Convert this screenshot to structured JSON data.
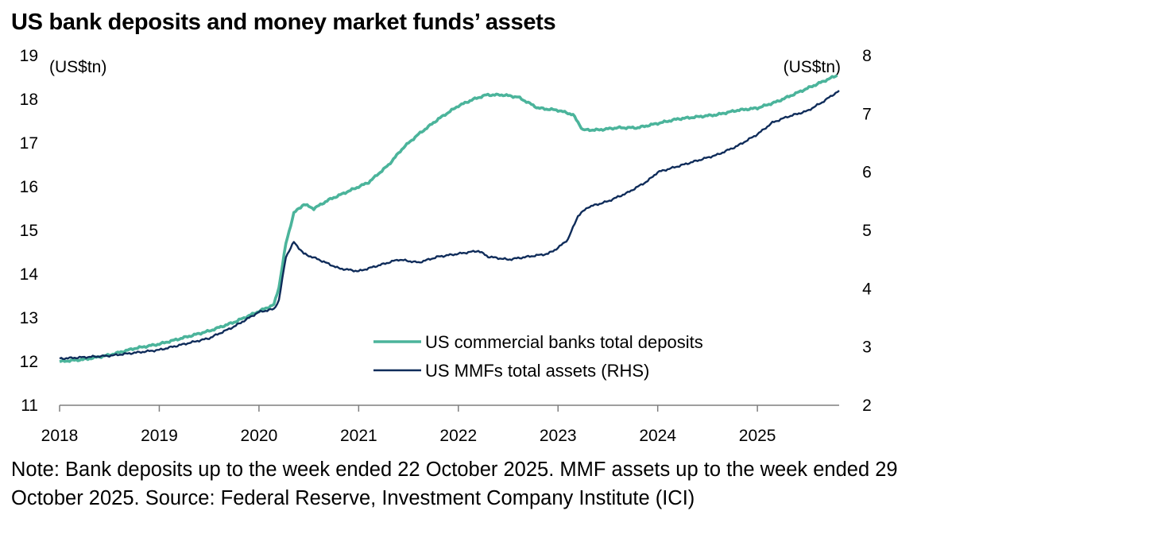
{
  "title": "US bank deposits and money market funds’ assets",
  "note_line1": "Note: Bank deposits up to the week ended 22 October 2025. MMF assets up to the week ended 29",
  "note_line2": "October 2025. Source: Federal Reserve, Investment Company Institute (ICI)",
  "chart_data": {
    "type": "line",
    "title": "US bank deposits and money market funds’ assets",
    "left_axis_unit": "(US$tn)",
    "right_axis_unit": "(US$tn)",
    "ylim_left": [
      11,
      19
    ],
    "ylim_right": [
      2,
      8
    ],
    "xlim": [
      2018,
      2025.82
    ],
    "left_ticks": [
      "11",
      "12",
      "13",
      "14",
      "15",
      "16",
      "17",
      "18",
      "19"
    ],
    "right_ticks": [
      "2",
      "3",
      "4",
      "5",
      "6",
      "7",
      "8"
    ],
    "x_ticks": [
      "2018",
      "2019",
      "2020",
      "2021",
      "2022",
      "2023",
      "2024",
      "2025"
    ],
    "legend": [
      {
        "label": "US commercial banks total deposits",
        "color": "#4bb49b"
      },
      {
        "label": "US MMFs total assets (RHS)",
        "color": "#0f2c5a"
      }
    ],
    "series": [
      {
        "name": "US commercial banks total deposits",
        "axis": "left",
        "color": "#4bb49b",
        "x": [
          2018.0,
          2018.25,
          2018.5,
          2018.75,
          2019.0,
          2019.25,
          2019.5,
          2019.75,
          2020.0,
          2020.15,
          2020.2,
          2020.27,
          2020.35,
          2020.45,
          2020.55,
          2020.7,
          2020.9,
          2021.1,
          2021.3,
          2021.45,
          2021.6,
          2021.8,
          2022.0,
          2022.15,
          2022.28,
          2022.45,
          2022.6,
          2022.8,
          2023.0,
          2023.15,
          2023.25,
          2023.4,
          2023.6,
          2023.8,
          2024.0,
          2024.2,
          2024.4,
          2024.6,
          2024.8,
          2025.0,
          2025.2,
          2025.4,
          2025.6,
          2025.8
        ],
        "values": [
          12.0,
          12.05,
          12.15,
          12.3,
          12.4,
          12.55,
          12.7,
          12.9,
          13.15,
          13.3,
          13.7,
          14.7,
          15.4,
          15.6,
          15.5,
          15.7,
          15.9,
          16.1,
          16.5,
          16.9,
          17.2,
          17.55,
          17.85,
          18.0,
          18.1,
          18.1,
          18.05,
          17.8,
          17.75,
          17.65,
          17.3,
          17.3,
          17.35,
          17.35,
          17.45,
          17.55,
          17.6,
          17.65,
          17.75,
          17.8,
          17.95,
          18.15,
          18.35,
          18.55
        ]
      },
      {
        "name": "US MMFs total assets (RHS)",
        "axis": "right",
        "color": "#0f2c5a",
        "x": [
          2018.0,
          2018.2,
          2018.5,
          2018.75,
          2019.0,
          2019.25,
          2019.5,
          2019.75,
          2020.0,
          2020.15,
          2020.2,
          2020.27,
          2020.35,
          2020.45,
          2020.6,
          2020.8,
          2021.0,
          2021.2,
          2021.4,
          2021.6,
          2021.8,
          2022.0,
          2022.2,
          2022.3,
          2022.5,
          2022.7,
          2022.9,
          2023.0,
          2023.1,
          2023.2,
          2023.3,
          2023.5,
          2023.7,
          2023.9,
          2024.0,
          2024.2,
          2024.4,
          2024.6,
          2024.8,
          2025.0,
          2025.15,
          2025.3,
          2025.5,
          2025.65,
          2025.82
        ],
        "values": [
          2.8,
          2.82,
          2.85,
          2.9,
          2.95,
          3.05,
          3.15,
          3.35,
          3.6,
          3.65,
          3.8,
          4.55,
          4.8,
          4.6,
          4.5,
          4.35,
          4.3,
          4.4,
          4.5,
          4.45,
          4.55,
          4.6,
          4.65,
          4.55,
          4.5,
          4.55,
          4.6,
          4.7,
          4.85,
          5.25,
          5.4,
          5.5,
          5.65,
          5.85,
          6.0,
          6.1,
          6.2,
          6.3,
          6.45,
          6.65,
          6.85,
          6.95,
          7.05,
          7.2,
          7.4
        ]
      }
    ]
  }
}
